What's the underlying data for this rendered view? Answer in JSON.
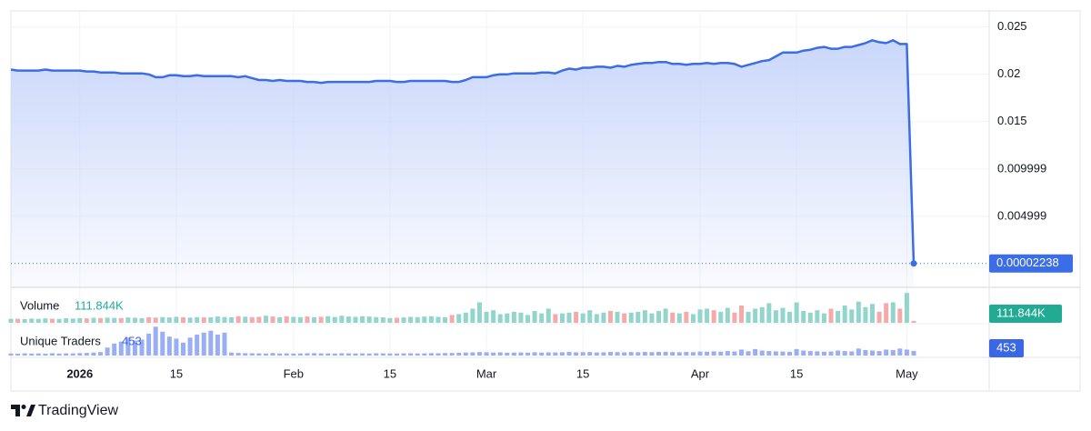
{
  "chart_data": [
    {
      "type": "area",
      "color": "#3a6de6",
      "fill_color": "#c7d5fa",
      "xlim": [
        0,
        131
      ],
      "xticks": [
        {
          "value": 10,
          "label": "2026"
        },
        {
          "value": 24,
          "label": "15"
        },
        {
          "value": 41,
          "label": "Feb"
        },
        {
          "value": 55,
          "label": "15"
        },
        {
          "value": 69,
          "label": "Mar"
        },
        {
          "value": 83,
          "label": "15"
        },
        {
          "value": 100,
          "label": "Apr"
        },
        {
          "value": 114,
          "label": "15"
        },
        {
          "value": 130,
          "label": "May"
        }
      ],
      "ylim": [
        -0.0025,
        0.0267
      ],
      "yticks": [
        0.004999,
        0.009999,
        0.015,
        0.02,
        0.025
      ],
      "grid": true,
      "values": [
        0.0205,
        0.0204,
        0.0204,
        0.0204,
        0.0204,
        0.0205,
        0.0204,
        0.0204,
        0.0204,
        0.0204,
        0.0204,
        0.0203,
        0.0203,
        0.0202,
        0.0202,
        0.0202,
        0.0201,
        0.0201,
        0.0201,
        0.0201,
        0.02,
        0.0197,
        0.0197,
        0.0199,
        0.0199,
        0.0198,
        0.0198,
        0.0199,
        0.0198,
        0.0198,
        0.0198,
        0.0198,
        0.0198,
        0.0197,
        0.0198,
        0.0196,
        0.0194,
        0.0194,
        0.0193,
        0.0194,
        0.0193,
        0.0193,
        0.0193,
        0.0192,
        0.0192,
        0.0191,
        0.0192,
        0.0192,
        0.0192,
        0.0192,
        0.0192,
        0.0192,
        0.0192,
        0.0193,
        0.0193,
        0.0193,
        0.0192,
        0.0192,
        0.0193,
        0.0193,
        0.0193,
        0.0193,
        0.0193,
        0.0193,
        0.0192,
        0.0192,
        0.0194,
        0.0197,
        0.0197,
        0.0197,
        0.0199,
        0.02,
        0.02,
        0.0201,
        0.0201,
        0.0201,
        0.0201,
        0.0202,
        0.0202,
        0.0201,
        0.0204,
        0.0206,
        0.0205,
        0.0207,
        0.0207,
        0.0208,
        0.0208,
        0.0207,
        0.0209,
        0.0208,
        0.021,
        0.0211,
        0.0212,
        0.0212,
        0.0213,
        0.0213,
        0.0211,
        0.0211,
        0.021,
        0.0211,
        0.0211,
        0.0212,
        0.0211,
        0.0212,
        0.0212,
        0.0211,
        0.0208,
        0.021,
        0.0212,
        0.0214,
        0.0215,
        0.0219,
        0.0223,
        0.0223,
        0.0223,
        0.0225,
        0.0226,
        0.0228,
        0.0229,
        0.0227,
        0.0227,
        0.0229,
        0.0229,
        0.0231,
        0.0233,
        0.0236,
        0.0234,
        0.0233,
        0.0236,
        0.0232,
        0.0232,
        2.238e-05
      ]
    },
    {
      "type": "bar",
      "title": "Volume",
      "last_label": "111.844K",
      "up_color": "#92d5cd",
      "down_color": "#f7a9a9",
      "legend_color": "#22ab94",
      "ylim": [
        0,
        2200000
      ],
      "values": [
        250000,
        260000,
        240000,
        270000,
        250000,
        280000,
        260000,
        250000,
        290000,
        270000,
        300000,
        280000,
        320000,
        300000,
        330000,
        310000,
        300000,
        340000,
        320000,
        300000,
        350000,
        330000,
        360000,
        340000,
        380000,
        350000,
        330000,
        360000,
        340000,
        350000,
        400000,
        370000,
        350000,
        420000,
        390000,
        360000,
        380000,
        450000,
        400000,
        350000,
        420000,
        380000,
        360000,
        400000,
        350000,
        380000,
        420000,
        370000,
        450000,
        400000,
        380000,
        420000,
        400000,
        360000,
        350000,
        300000,
        320000,
        340000,
        380000,
        360000,
        400000,
        420000,
        380000,
        350000,
        500000,
        550000,
        650000,
        900000,
        1300000,
        700000,
        800000,
        550000,
        600000,
        700000,
        650000,
        500000,
        750000,
        600000,
        900000,
        550000,
        600000,
        650000,
        700000,
        600000,
        800000,
        550000,
        650000,
        750000,
        700000,
        600000,
        650000,
        700000,
        800000,
        600000,
        750000,
        900000,
        650000,
        600000,
        700000,
        550000,
        850000,
        900000,
        800000,
        700000,
        950000,
        650000,
        1100000,
        700000,
        900000,
        1000000,
        1250000,
        800000,
        950000,
        700000,
        1300000,
        750000,
        650000,
        800000,
        600000,
        900000,
        750000,
        1100000,
        850000,
        1350000,
        1000000,
        1200000,
        700000,
        1250000,
        1300000,
        900000,
        1900000,
        111844
      ]
    },
    {
      "type": "bar",
      "title": "Unique Traders",
      "color": "#9aaef5",
      "legend_color": "#3a67e6",
      "ylim": [
        0,
        3200
      ],
      "values": [
        200,
        180,
        220,
        200,
        210,
        190,
        230,
        200,
        220,
        210,
        240,
        260,
        300,
        350,
        800,
        1200,
        1400,
        1800,
        1500,
        1600,
        2200,
        2900,
        2400,
        1900,
        1700,
        1300,
        1800,
        2100,
        2300,
        2500,
        2100,
        2300,
        300,
        260,
        240,
        230,
        220,
        200,
        250,
        210,
        220,
        200,
        210,
        230,
        240,
        220,
        210,
        200,
        230,
        220,
        210,
        220,
        200,
        230,
        220,
        210,
        200,
        220,
        230,
        210,
        220,
        240,
        230,
        250,
        260,
        280,
        300,
        320,
        350,
        330,
        300,
        320,
        280,
        300,
        310,
        290,
        330,
        300,
        320,
        310,
        330,
        360,
        320,
        340,
        350,
        310,
        330,
        360,
        340,
        320,
        350,
        330,
        360,
        340,
        370,
        380,
        350,
        330,
        360,
        340,
        400,
        380,
        420,
        390,
        450,
        410,
        600,
        430,
        650,
        500,
        450,
        420,
        400,
        380,
        650,
        500,
        450,
        420,
        380,
        410,
        500,
        450,
        420,
        700,
        550,
        500,
        450,
        600,
        550,
        700,
        600,
        453
      ]
    }
  ],
  "branding": "TradingView"
}
